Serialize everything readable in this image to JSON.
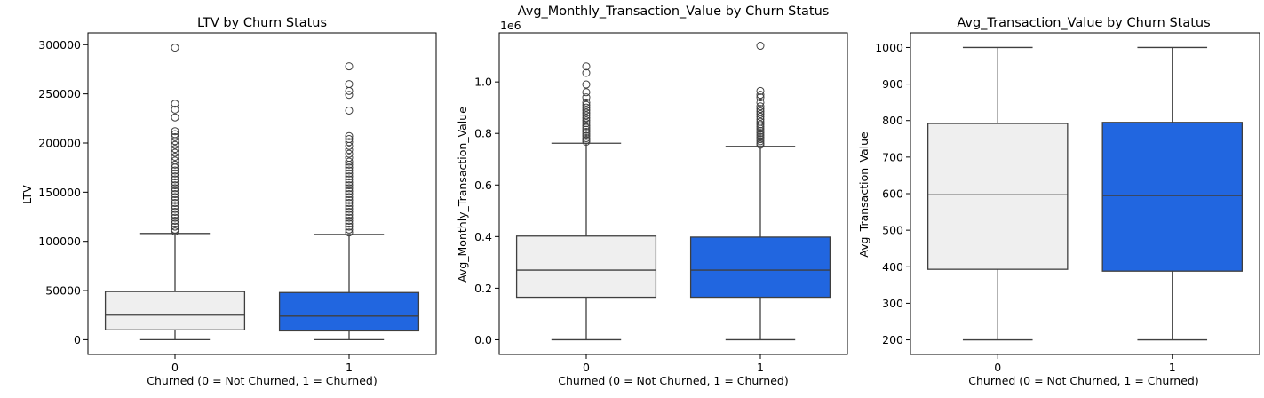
{
  "chart_data": [
    {
      "type": "box",
      "title": "LTV by Churn Status",
      "xlabel": "Churned (0 = Not Churned, 1 = Churned)",
      "ylabel": "LTV",
      "offset_label": "",
      "ylim": [
        -15000,
        312000
      ],
      "yticks": [
        0,
        50000,
        100000,
        150000,
        200000,
        250000,
        300000
      ],
      "ytick_labels": [
        "0",
        "50000",
        "100000",
        "150000",
        "200000",
        "250000",
        "300000"
      ],
      "categories": [
        "0",
        "1"
      ],
      "colors": [
        "#efefef",
        "#2166e0"
      ],
      "boxes": [
        {
          "category": "0",
          "whislo": 0,
          "q1": 10000,
          "med": 25000,
          "q3": 49000,
          "whishi": 108000,
          "fliers": [
            110000,
            112000,
            115000,
            118000,
            121000,
            124000,
            127000,
            130000,
            133000,
            136000,
            139000,
            142000,
            145000,
            148000,
            151000,
            154000,
            157000,
            160000,
            163000,
            166000,
            169000,
            172000,
            175000,
            178000,
            182000,
            186000,
            190000,
            194000,
            198000,
            202000,
            206000,
            209000,
            212000,
            226000,
            234000,
            240000,
            297000
          ]
        },
        {
          "category": "1",
          "whislo": 0,
          "q1": 9000,
          "med": 24000,
          "q3": 48000,
          "whishi": 107000,
          "fliers": [
            109000,
            112000,
            115000,
            118000,
            121000,
            124000,
            127000,
            130000,
            133000,
            136000,
            139000,
            142000,
            145000,
            148000,
            151000,
            154000,
            157000,
            160000,
            163000,
            166000,
            169000,
            172000,
            175000,
            178000,
            181000,
            185000,
            189000,
            193000,
            197000,
            201000,
            204000,
            207000,
            233000,
            249000,
            253000,
            260000,
            278000
          ]
        }
      ]
    },
    {
      "type": "box",
      "title": "Avg_Monthly_Transaction_Value by Churn Status",
      "xlabel": "Churned (0 = Not Churned, 1 = Churned)",
      "ylabel": "Avg_Monthly_Transaction_Value",
      "offset_label": "1e6",
      "ylim": [
        -0.057,
        1.19
      ],
      "yticks": [
        0,
        0.2,
        0.4,
        0.6,
        0.8,
        1.0
      ],
      "ytick_labels": [
        "0.0",
        "0.2",
        "0.4",
        "0.6",
        "0.8",
        "1.0"
      ],
      "categories": [
        "0",
        "1"
      ],
      "colors": [
        "#efefef",
        "#2166e0"
      ],
      "boxes": [
        {
          "category": "0",
          "whislo": 0,
          "q1": 0.165,
          "med": 0.27,
          "q3": 0.402,
          "whishi": 0.762,
          "fliers": [
            0.768,
            0.775,
            0.782,
            0.79,
            0.798,
            0.806,
            0.814,
            0.822,
            0.83,
            0.84,
            0.85,
            0.86,
            0.87,
            0.88,
            0.89,
            0.9,
            0.91,
            0.92,
            0.94,
            0.96,
            0.99,
            1.035,
            1.06
          ]
        },
        {
          "category": "1",
          "whislo": 0,
          "q1": 0.165,
          "med": 0.27,
          "q3": 0.398,
          "whishi": 0.75,
          "fliers": [
            0.756,
            0.762,
            0.77,
            0.778,
            0.786,
            0.794,
            0.802,
            0.81,
            0.818,
            0.826,
            0.835,
            0.845,
            0.855,
            0.865,
            0.875,
            0.885,
            0.895,
            0.905,
            0.92,
            0.94,
            0.95,
            0.965,
            1.14
          ]
        }
      ]
    },
    {
      "type": "box",
      "title": "Avg_Transaction_Value by Churn Status",
      "xlabel": "Churned (0 = Not Churned, 1 = Churned)",
      "ylabel": "Avg_Transaction_Value",
      "offset_label": "",
      "ylim": [
        160,
        1040
      ],
      "yticks": [
        200,
        300,
        400,
        500,
        600,
        700,
        800,
        900,
        1000
      ],
      "ytick_labels": [
        "200",
        "300",
        "400",
        "500",
        "600",
        "700",
        "800",
        "900",
        "1000"
      ],
      "categories": [
        "0",
        "1"
      ],
      "colors": [
        "#efefef",
        "#2166e0"
      ],
      "boxes": [
        {
          "category": "0",
          "whislo": 200,
          "q1": 393,
          "med": 597,
          "q3": 792,
          "whishi": 1000,
          "fliers": []
        },
        {
          "category": "1",
          "whislo": 200,
          "q1": 388,
          "med": 595,
          "q3": 795,
          "whishi": 1000,
          "fliers": []
        }
      ]
    }
  ]
}
